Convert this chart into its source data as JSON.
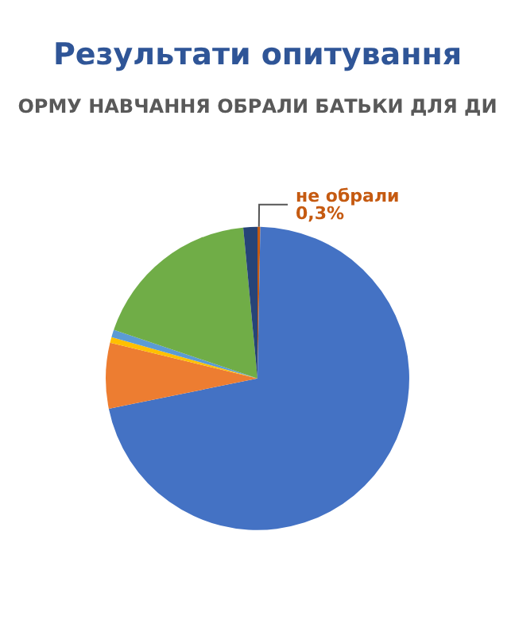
{
  "chart_data": {
    "type": "pie",
    "title": "Результати опитування",
    "subtitle": "ОРМУ НАВЧАННЯ ОБРАЛИ БАТЬКИ ДЛЯ ДИ",
    "categories": [
      "не обрали",
      null,
      null,
      null,
      null,
      null,
      null
    ],
    "values": [
      0.3,
      71.5,
      7,
      0.6,
      0.8,
      18.3,
      1.5
    ],
    "colors": [
      "#c55a11",
      "#4472c4",
      "#ed7d31",
      "#ffc000",
      "#5b9bd5",
      "#70ad47",
      "#264478"
    ],
    "value_labels": [
      "0,3%",
      null,
      null,
      null,
      null,
      null,
      null
    ]
  }
}
